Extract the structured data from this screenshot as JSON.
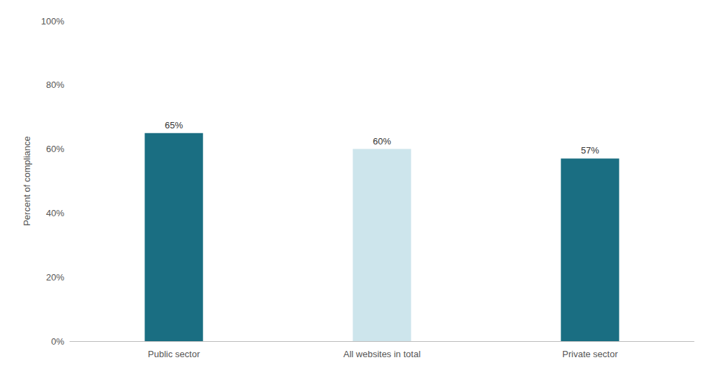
{
  "chart_data": {
    "type": "bar",
    "categories": [
      "Public sector",
      "All websites in total",
      "Private sector"
    ],
    "values": [
      0.65,
      0.6,
      0.57
    ],
    "value_labels": [
      "65%",
      "60%",
      "57%"
    ],
    "data_labels": true,
    "colors": [
      "#1a6e82",
      "#cde5ec",
      "#1a6e82"
    ],
    "ylabel": "Percent of compliance",
    "ylim": [
      0,
      1.0
    ],
    "yticks": [
      {
        "value": 0,
        "label": "0%"
      },
      {
        "value": 0.2,
        "label": "20%"
      },
      {
        "value": 0.4,
        "label": "40%"
      },
      {
        "value": 0.6,
        "label": "60%"
      },
      {
        "value": 0.8,
        "label": "80%"
      },
      {
        "value": 1.0,
        "label": "100%"
      }
    ],
    "grid": false
  }
}
